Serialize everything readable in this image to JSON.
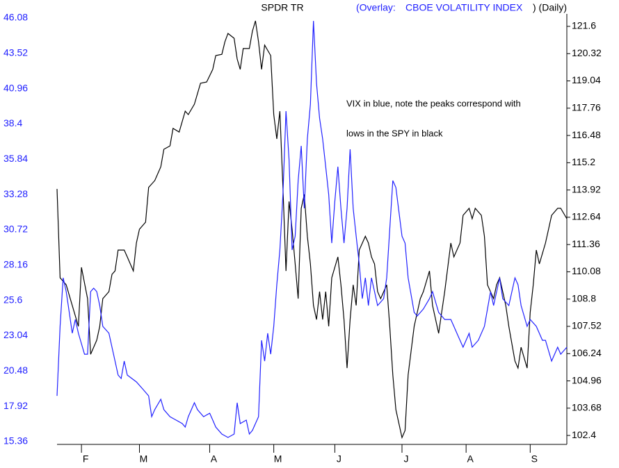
{
  "chart_data": {
    "type": "line",
    "title": "SPDR TR",
    "overlay_label": "(Overlay:",
    "period_label": ") (Daily)",
    "annotation": [
      "VIX in blue, note the peaks correspond with",
      "lows in the SPY in black"
    ],
    "xlim": [
      0,
      167
    ],
    "xticks": [
      {
        "value": 8,
        "label": "F"
      },
      {
        "value": 27,
        "label": "M"
      },
      {
        "value": 50,
        "label": "A"
      },
      {
        "value": 71,
        "label": "M"
      },
      {
        "value": 91,
        "label": "J"
      },
      {
        "value": 113,
        "label": "J"
      },
      {
        "value": 134,
        "label": "A"
      },
      {
        "value": 155,
        "label": "S"
      }
    ],
    "ylim": [
      15.36,
      46.08
    ],
    "yticks": [
      15.36,
      17.92,
      20.48,
      23.04,
      25.6,
      28.16,
      30.72,
      33.28,
      35.84,
      38.4,
      40.96,
      43.52,
      46.08
    ],
    "y2lim": [
      102.11,
      121.99
    ],
    "y2ticks": [
      102.4,
      103.68,
      104.96,
      106.24,
      107.52,
      108.8,
      110.08,
      111.36,
      112.64,
      113.92,
      115.2,
      116.48,
      117.76,
      119.04,
      120.32,
      121.6
    ],
    "left_axis_color": "#2020ff",
    "series": [
      {
        "name": "SPDR TR",
        "color": "#000000",
        "axis": "y2",
        "x": [
          0,
          1,
          3,
          5,
          7,
          8,
          10,
          11,
          13,
          14,
          15,
          17,
          18,
          19,
          20,
          22,
          23,
          25,
          26,
          27,
          29,
          30,
          32,
          34,
          35,
          37,
          38,
          40,
          42,
          43,
          45,
          47,
          49,
          51,
          52,
          54,
          55,
          56,
          58,
          59,
          60,
          61,
          63,
          64,
          65,
          66,
          67,
          68,
          70,
          71,
          72,
          73,
          74,
          75,
          76,
          77,
          78,
          79,
          80,
          81,
          82,
          83,
          84,
          85,
          86,
          87,
          88,
          89,
          90,
          92,
          93,
          94,
          95,
          96,
          97,
          98,
          99,
          101,
          102,
          103,
          104,
          105,
          106,
          108,
          109,
          110,
          111,
          113,
          114,
          115,
          117,
          118,
          119,
          120,
          122,
          123,
          125,
          126,
          127,
          129,
          130,
          132,
          133,
          135,
          136,
          137,
          139,
          140,
          141,
          143,
          144,
          145,
          147,
          148,
          150,
          151,
          152,
          154,
          155,
          156,
          157,
          158,
          160,
          161,
          162,
          164,
          165,
          167
        ],
        "values": [
          113.97,
          109.8,
          109.47,
          108.5,
          107.52,
          110.29,
          108.82,
          106.21,
          106.87,
          107.52,
          108.82,
          109.15,
          109.96,
          110.12,
          111.1,
          111.1,
          110.78,
          110.12,
          111.43,
          112.08,
          112.41,
          114.04,
          114.36,
          115.01,
          115.83,
          115.99,
          116.81,
          116.64,
          117.62,
          117.46,
          117.95,
          118.93,
          118.99,
          119.58,
          120.23,
          120.29,
          120.88,
          121.27,
          121.04,
          120.07,
          119.58,
          120.56,
          120.56,
          121.37,
          121.86,
          120.88,
          119.58,
          120.72,
          120.23,
          117.46,
          116.32,
          117.62,
          114.04,
          110.12,
          113.38,
          112.08,
          110.45,
          108.82,
          113.06,
          113.71,
          111.75,
          110.45,
          108.5,
          107.84,
          109.15,
          107.84,
          109.15,
          107.52,
          109.8,
          110.78,
          109.47,
          107.84,
          105.56,
          107.84,
          109.47,
          108.5,
          111.1,
          111.75,
          111.43,
          110.78,
          110.45,
          109.15,
          108.82,
          109.47,
          107.52,
          105.24,
          103.61,
          102.3,
          102.63,
          105.24,
          107.52,
          108.17,
          108.82,
          109.15,
          110.12,
          108.5,
          107.19,
          108.17,
          109.15,
          111.43,
          110.78,
          111.43,
          112.73,
          113.06,
          112.57,
          113.06,
          112.73,
          111.75,
          109.47,
          108.82,
          109.47,
          109.8,
          108.5,
          107.52,
          105.89,
          105.56,
          106.54,
          105.56,
          108.17,
          109.47,
          111.1,
          110.45,
          111.43,
          112.08,
          112.73,
          113.06,
          113.06,
          112.57
        ]
      },
      {
        "name": "CBOE VOLATILITY INDEX",
        "color": "#2020ff",
        "axis": "y",
        "x": [
          0,
          1,
          2,
          3,
          4,
          5,
          6,
          7,
          9,
          10,
          11,
          12,
          13,
          14,
          15,
          17,
          18,
          19,
          20,
          21,
          22,
          23,
          26,
          28,
          30,
          31,
          32,
          34,
          35,
          37,
          39,
          41,
          42,
          43,
          45,
          46,
          48,
          50,
          51,
          52,
          54,
          56,
          58,
          59,
          60,
          62,
          63,
          64,
          66,
          67,
          68,
          69,
          70,
          71,
          72,
          73,
          74,
          75,
          76,
          77,
          78,
          79,
          80,
          81,
          82,
          83,
          84,
          85,
          86,
          87,
          88,
          89,
          90,
          91,
          92,
          93,
          94,
          95,
          96,
          97,
          98,
          99,
          100,
          101,
          102,
          103,
          104,
          105,
          107,
          108,
          109,
          110,
          111,
          113,
          114,
          115,
          117,
          118,
          120,
          122,
          123,
          125,
          127,
          129,
          130,
          131,
          133,
          135,
          136,
          138,
          140,
          142,
          143,
          145,
          146,
          148,
          150,
          151,
          152,
          154,
          155,
          157,
          159,
          160,
          162,
          164,
          165,
          167
        ],
        "values": [
          18.68,
          23.72,
          27.24,
          26.24,
          24.73,
          23.22,
          24.22,
          23.22,
          21.7,
          21.7,
          26.24,
          26.49,
          26.24,
          25.23,
          23.72,
          23.22,
          22.21,
          21.2,
          20.19,
          19.94,
          21.2,
          20.19,
          19.69,
          19.19,
          18.68,
          17.17,
          17.68,
          18.43,
          17.68,
          17.17,
          16.92,
          16.67,
          16.42,
          17.17,
          18.18,
          17.68,
          17.17,
          17.42,
          16.92,
          16.42,
          15.91,
          15.66,
          15.91,
          18.18,
          16.67,
          16.92,
          15.91,
          16.17,
          17.17,
          22.71,
          21.2,
          23.22,
          21.7,
          23.72,
          26.74,
          29.26,
          33.29,
          39.33,
          35.8,
          29.26,
          30.26,
          34.29,
          36.81,
          32.28,
          37.31,
          39.83,
          45.87,
          41.34,
          38.82,
          37.31,
          35.3,
          33.29,
          29.76,
          32.78,
          35.3,
          32.28,
          29.76,
          32.28,
          36.56,
          32.28,
          30.26,
          28.25,
          25.73,
          27.24,
          25.23,
          27.24,
          26.24,
          25.23,
          25.73,
          27.24,
          30.77,
          34.29,
          33.79,
          30.26,
          29.76,
          27.24,
          24.73,
          24.47,
          24.98,
          25.73,
          26.24,
          24.73,
          24.22,
          24.22,
          23.72,
          23.21,
          22.21,
          23.21,
          22.21,
          22.71,
          23.72,
          26.24,
          25.23,
          27.24,
          25.73,
          25.23,
          27.24,
          26.74,
          25.23,
          23.72,
          24.22,
          23.72,
          22.71,
          22.71,
          21.2,
          22.21,
          21.7,
          22.21
        ]
      }
    ]
  }
}
